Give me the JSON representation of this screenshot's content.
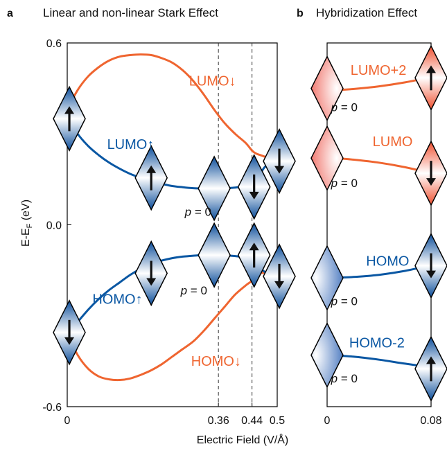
{
  "colors": {
    "orange": "#ef6530",
    "blue": "#0a57a3",
    "frame": "#000000",
    "guide": "#333333"
  },
  "panel_a": {
    "letter": "a",
    "title": "Linear and non-linear Stark Effect"
  },
  "panel_b": {
    "letter": "b",
    "title": "Hybridization Effect"
  },
  "ylabel_main": "E-E",
  "ylabel_sub": "F",
  "ylabel_unit": " (eV)",
  "p_zero": "p = 0",
  "chart_data": [
    {
      "type": "line",
      "title": "Linear and non-linear Stark Effect",
      "xlabel": "Electric Field (V/Å)",
      "ylabel": "E-EF (eV)",
      "xlim": [
        0,
        0.5
      ],
      "ylim": [
        -0.6,
        0.6
      ],
      "xticks": [
        0,
        0.36,
        0.44,
        0.5
      ],
      "xtick_labels": [
        "0",
        "0.36",
        "0.44",
        "0.5"
      ],
      "yticks": [
        -0.6,
        0.0,
        0.6
      ],
      "ytick_labels": [
        "-0.6",
        "0.0",
        "0.6"
      ],
      "guide_lines_x": [
        0.36,
        0.44
      ],
      "series": [
        {
          "name": "LUMO↓",
          "color": "orange",
          "x": [
            0.0,
            0.025,
            0.05,
            0.075,
            0.1,
            0.125,
            0.15,
            0.175,
            0.2,
            0.225,
            0.25,
            0.275,
            0.3,
            0.325,
            0.35,
            0.375,
            0.4,
            0.425,
            0.44,
            0.45,
            0.46,
            0.47,
            0.48,
            0.49,
            0.5
          ],
          "y": [
            0.38,
            0.445,
            0.49,
            0.52,
            0.542,
            0.555,
            0.56,
            0.562,
            0.56,
            0.55,
            0.535,
            0.51,
            0.475,
            0.43,
            0.38,
            0.335,
            0.3,
            0.27,
            0.245,
            0.235,
            0.23,
            0.225,
            0.22,
            0.218,
            0.215
          ]
        },
        {
          "name": "LUMO↑",
          "color": "blue",
          "x": [
            0.0,
            0.025,
            0.05,
            0.075,
            0.1,
            0.125,
            0.15,
            0.175,
            0.2,
            0.225,
            0.25,
            0.275,
            0.3,
            0.325,
            0.35,
            0.375,
            0.4,
            0.425,
            0.44,
            0.45,
            0.46,
            0.47,
            0.48,
            0.49,
            0.5
          ],
          "y": [
            0.36,
            0.3,
            0.26,
            0.23,
            0.205,
            0.185,
            0.168,
            0.155,
            0.143,
            0.135,
            0.128,
            0.124,
            0.121,
            0.12,
            0.12,
            0.121,
            0.123,
            0.128,
            0.135,
            0.148,
            0.17,
            0.19,
            0.2,
            0.205,
            0.21
          ]
        },
        {
          "name": "HOMO↓",
          "color": "orange",
          "x": [
            0.0,
            0.025,
            0.05,
            0.075,
            0.1,
            0.125,
            0.15,
            0.175,
            0.2,
            0.225,
            0.25,
            0.275,
            0.3,
            0.325,
            0.35,
            0.375,
            0.4,
            0.425,
            0.44,
            0.45,
            0.46,
            0.47,
            0.48,
            0.49,
            0.5
          ],
          "y": [
            -0.36,
            -0.43,
            -0.475,
            -0.5,
            -0.51,
            -0.512,
            -0.507,
            -0.495,
            -0.48,
            -0.46,
            -0.435,
            -0.41,
            -0.385,
            -0.35,
            -0.31,
            -0.27,
            -0.23,
            -0.2,
            -0.185,
            -0.17,
            -0.16,
            -0.158,
            -0.158,
            -0.16,
            -0.162
          ]
        },
        {
          "name": "HOMO↑",
          "color": "blue",
          "x": [
            0.0,
            0.025,
            0.05,
            0.075,
            0.1,
            0.125,
            0.15,
            0.175,
            0.2,
            0.225,
            0.25,
            0.275,
            0.3,
            0.325,
            0.35,
            0.375,
            0.4,
            0.425,
            0.44,
            0.45,
            0.46,
            0.47,
            0.48,
            0.49,
            0.5
          ],
          "y": [
            -0.36,
            -0.32,
            -0.28,
            -0.245,
            -0.215,
            -0.19,
            -0.165,
            -0.145,
            -0.13,
            -0.118,
            -0.11,
            -0.105,
            -0.102,
            -0.1,
            -0.1,
            -0.101,
            -0.103,
            -0.108,
            -0.115,
            -0.128,
            -0.143,
            -0.155,
            -0.162,
            -0.165,
            -0.165
          ]
        }
      ],
      "annotations": [
        {
          "text": "LUMO↓",
          "x": 0.29,
          "y": 0.46,
          "color": "orange"
        },
        {
          "text": "LUMO↑",
          "x": 0.095,
          "y": 0.25,
          "color": "blue"
        },
        {
          "text": "HOMO↑",
          "x": 0.06,
          "y": -0.26,
          "color": "blue"
        },
        {
          "text": "HOMO↓",
          "x": 0.295,
          "y": -0.465,
          "color": "orange"
        },
        {
          "text": "p = 0",
          "x": 0.28,
          "y": 0.03,
          "color": "black"
        },
        {
          "text": "p = 0",
          "x": 0.27,
          "y": -0.23,
          "color": "black"
        }
      ],
      "markers": [
        {
          "x": 0.005,
          "y": 0.35,
          "fill": "blue",
          "spin": "up"
        },
        {
          "x": 0.2,
          "y": 0.155,
          "fill": "blue",
          "spin": "up"
        },
        {
          "x": 0.35,
          "y": 0.12,
          "fill": "blue",
          "spin": "none"
        },
        {
          "x": 0.445,
          "y": 0.125,
          "fill": "blue",
          "spin": "down"
        },
        {
          "x": 0.505,
          "y": 0.21,
          "fill": "blue",
          "spin": "down"
        },
        {
          "x": 0.005,
          "y": -0.355,
          "fill": "blue",
          "spin": "down"
        },
        {
          "x": 0.2,
          "y": -0.16,
          "fill": "blue",
          "spin": "down"
        },
        {
          "x": 0.35,
          "y": -0.1,
          "fill": "blue",
          "spin": "none"
        },
        {
          "x": 0.445,
          "y": -0.1,
          "fill": "blue",
          "spin": "up"
        },
        {
          "x": 0.505,
          "y": -0.17,
          "fill": "blue",
          "spin": "down"
        }
      ]
    },
    {
      "type": "line",
      "title": "Hybridization Effect",
      "xlim": [
        0,
        0.08
      ],
      "ylim": [
        -0.6,
        0.6
      ],
      "xticks": [
        0,
        0.08
      ],
      "xtick_labels": [
        "0",
        "0.08"
      ],
      "series": [
        {
          "name": "LUMO+2",
          "color": "orange",
          "x": [
            0.0,
            0.02,
            0.04,
            0.06,
            0.08
          ],
          "y": [
            0.442,
            0.448,
            0.457,
            0.47,
            0.487
          ]
        },
        {
          "name": "LUMO",
          "color": "orange",
          "x": [
            0.0,
            0.02,
            0.04,
            0.06,
            0.08
          ],
          "y": [
            0.222,
            0.215,
            0.205,
            0.19,
            0.17
          ]
        },
        {
          "name": "HOMO",
          "color": "blue",
          "x": [
            0.0,
            0.02,
            0.04,
            0.06,
            0.08
          ],
          "y": [
            -0.175,
            -0.172,
            -0.165,
            -0.152,
            -0.133
          ]
        },
        {
          "name": "HOMO-2",
          "color": "blue",
          "x": [
            0.0,
            0.02,
            0.04,
            0.06,
            0.08
          ],
          "y": [
            -0.43,
            -0.435,
            -0.445,
            -0.458,
            -0.47
          ]
        }
      ],
      "annotations": [
        {
          "text": "LUMO+2",
          "x": 0.018,
          "y": 0.495,
          "color": "orange"
        },
        {
          "text": "LUMO",
          "x": 0.035,
          "y": 0.26,
          "color": "orange"
        },
        {
          "text": "HOMO",
          "x": 0.03,
          "y": -0.135,
          "color": "blue"
        },
        {
          "text": "HOMO-2",
          "x": 0.017,
          "y": -0.405,
          "color": "blue"
        },
        {
          "text": "p = 0",
          "x": 0.003,
          "y": 0.375,
          "color": "black"
        },
        {
          "text": "p = 0",
          "x": 0.003,
          "y": 0.125,
          "color": "black"
        },
        {
          "text": "p = 0",
          "x": 0.003,
          "y": -0.265,
          "color": "black"
        },
        {
          "text": "p = 0",
          "x": 0.003,
          "y": -0.52,
          "color": "black"
        }
      ],
      "markers": [
        {
          "x": 0.0,
          "y": 0.45,
          "fill": "red",
          "spin": "none"
        },
        {
          "x": 0.08,
          "y": 0.485,
          "fill": "red",
          "spin": "up"
        },
        {
          "x": 0.0,
          "y": 0.22,
          "fill": "red",
          "spin": "none"
        },
        {
          "x": 0.08,
          "y": 0.17,
          "fill": "red",
          "spin": "down"
        },
        {
          "x": 0.0,
          "y": -0.175,
          "fill": "blue",
          "spin": "none"
        },
        {
          "x": 0.08,
          "y": -0.135,
          "fill": "blue",
          "spin": "down"
        },
        {
          "x": 0.0,
          "y": -0.43,
          "fill": "blue",
          "spin": "none"
        },
        {
          "x": 0.08,
          "y": -0.475,
          "fill": "blue",
          "spin": "up"
        }
      ]
    }
  ]
}
